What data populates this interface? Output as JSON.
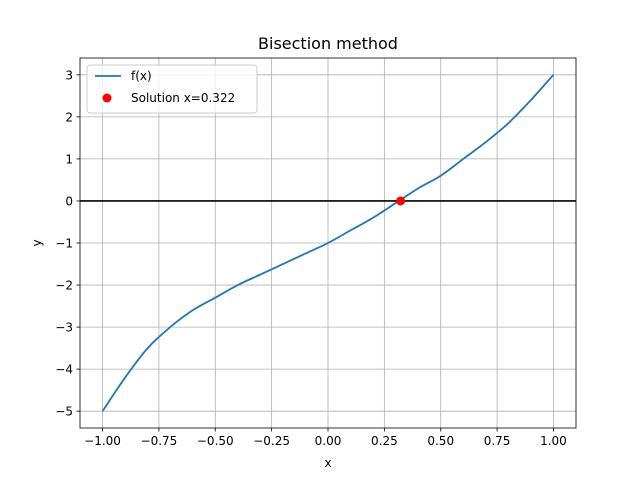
{
  "chart_data": {
    "type": "line",
    "title": "Bisection method",
    "xlabel": "x",
    "ylabel": "y",
    "xlim": [
      -1.1,
      1.1
    ],
    "ylim": [
      -5.4,
      3.4
    ],
    "x_ticks": [
      -1.0,
      -0.75,
      -0.5,
      -0.25,
      0.0,
      0.25,
      0.5,
      0.75,
      1.0
    ],
    "x_tick_labels": [
      "−1.00",
      "−0.75",
      "−0.50",
      "−0.25",
      "0.00",
      "0.25",
      "0.50",
      "0.75",
      "1.00"
    ],
    "y_ticks": [
      -5,
      -4,
      -3,
      -2,
      -1,
      0,
      1,
      2,
      3
    ],
    "y_tick_labels": [
      "−5",
      "−4",
      "−3",
      "−2",
      "−1",
      "0",
      "1",
      "2",
      "3"
    ],
    "grid": true,
    "legend_position": "top-left",
    "series": [
      {
        "name": "f(x)",
        "kind": "line",
        "color": "#1f77b4",
        "x": [
          -1.0,
          -0.9,
          -0.8,
          -0.7,
          -0.6,
          -0.5,
          -0.4,
          -0.3,
          -0.2,
          -0.1,
          0.0,
          0.1,
          0.2,
          0.3,
          0.4,
          0.5,
          0.6,
          0.7,
          0.8,
          0.9,
          1.0
        ],
        "y": [
          -5.0,
          -4.2,
          -3.5,
          -3.0,
          -2.6,
          -2.3,
          -2.0,
          -1.75,
          -1.5,
          -1.25,
          -1.0,
          -0.7,
          -0.4,
          -0.05,
          0.3,
          0.6,
          1.0,
          1.4,
          1.85,
          2.4,
          3.0
        ]
      },
      {
        "name": "Solution x=0.322",
        "kind": "scatter",
        "color": "#ff0000",
        "x": [
          0.322
        ],
        "y": [
          0.0
        ]
      }
    ],
    "reference_lines": [
      {
        "orientation": "horizontal",
        "y": 0,
        "color": "#000000"
      }
    ]
  }
}
